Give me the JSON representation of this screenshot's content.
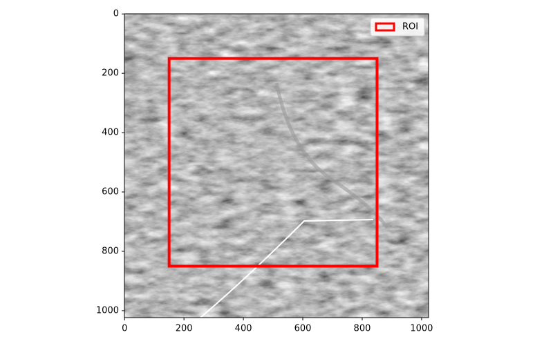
{
  "chart_data": {
    "type": "image",
    "xlim": [
      -0.5,
      1023.5
    ],
    "ylim": [
      1023.5,
      -0.5
    ],
    "xticks": [
      0,
      200,
      400,
      600,
      800,
      1000
    ],
    "yticks": [
      0,
      200,
      400,
      600,
      800,
      1000
    ],
    "roi": {
      "name": "ROI",
      "color": "#ff0000",
      "x": [
        150,
        850
      ],
      "y": [
        150,
        850
      ]
    },
    "legend": "upper right"
  }
}
